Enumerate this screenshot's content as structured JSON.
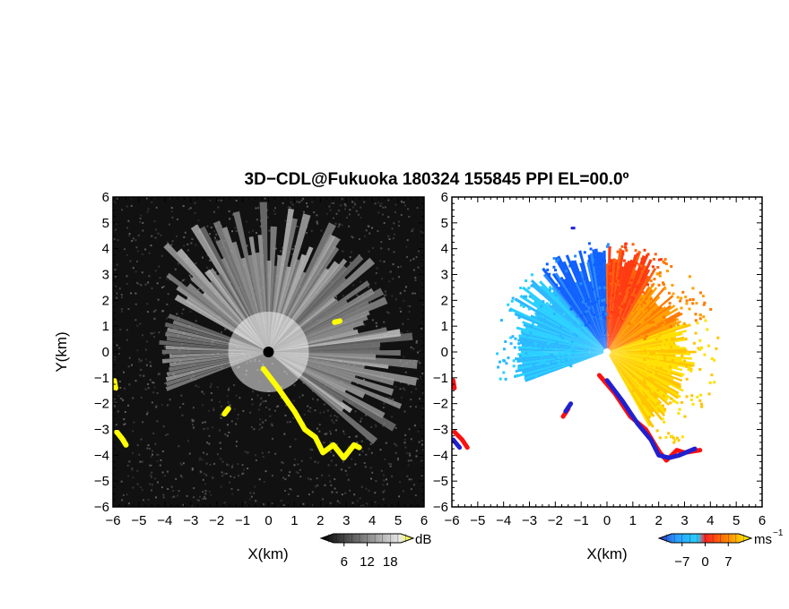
{
  "chart_data": {
    "type": "heatmap",
    "title": "3D−CDL@Fukuoka 180324 155845 PPI EL=00.0º",
    "panels": [
      {
        "name": "reflectivity",
        "xlabel": "X(km)",
        "ylabel": "Y(km)",
        "xlim": [
          -6,
          6
        ],
        "ylim": [
          -6,
          6
        ],
        "xticks": [
          "−6",
          "−5",
          "−4",
          "−3",
          "−2",
          "−1",
          "0",
          "1",
          "2",
          "3",
          "4",
          "5",
          "6"
        ],
        "yticks": [
          "−6",
          "−5",
          "−4",
          "−3",
          "−2",
          "−1",
          "0",
          "1",
          "2",
          "3",
          "4",
          "5",
          "6"
        ],
        "colorbar": {
          "unit": "dB",
          "ticks": [
            "6",
            "12",
            "18"
          ],
          "range": [
            0,
            24
          ],
          "colors": [
            "#000000",
            "#ffffff",
            "#ffff00"
          ]
        }
      },
      {
        "name": "doppler-velocity",
        "xlabel": "X(km)",
        "xlim": [
          -6,
          6
        ],
        "ylim": [
          -6,
          6
        ],
        "xticks": [
          "−6",
          "−5",
          "−4",
          "−3",
          "−2",
          "−1",
          "0",
          "1",
          "2",
          "3",
          "4",
          "5",
          "6"
        ],
        "yticks": [
          "−6",
          "−5",
          "−4",
          "−3",
          "−2",
          "−1",
          "0",
          "1",
          "2",
          "3",
          "4",
          "5",
          "6"
        ],
        "colorbar": {
          "unit": "ms",
          "unit_exponent": "−1",
          "ticks": [
            "−7",
            "0",
            "7"
          ],
          "range": [
            -14,
            14
          ],
          "colors": [
            "#1010d0",
            "#2aa8ff",
            "#2ad0ff",
            "#1060ff",
            "#ff2020",
            "#ff8000",
            "#ffb000",
            "#ffff00"
          ]
        }
      }
    ]
  }
}
